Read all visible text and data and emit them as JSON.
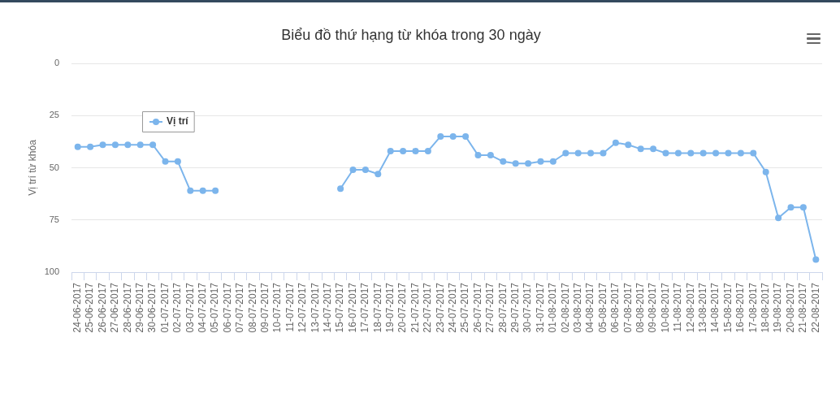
{
  "chart_data": {
    "type": "line",
    "title": "Biểu đồ thứ hạng từ khóa trong 30 ngày",
    "ylabel": "Vị trí từ khóa",
    "categories": [
      "24-06-2017",
      "25-06-2017",
      "26-06-2017",
      "27-06-2017",
      "28-06-2017",
      "29-06-2017",
      "30-06-2017",
      "01-07-2017",
      "02-07-2017",
      "03-07-2017",
      "04-07-2017",
      "05-07-2017",
      "06-07-2017",
      "07-07-2017",
      "08-07-2017",
      "09-07-2017",
      "10-07-2017",
      "11-07-2017",
      "12-07-2017",
      "13-07-2017",
      "14-07-2017",
      "15-07-2017",
      "16-07-2017",
      "17-07-2017",
      "18-07-2017",
      "19-07-2017",
      "20-07-2017",
      "21-07-2017",
      "22-07-2017",
      "23-07-2017",
      "24-07-2017",
      "25-07-2017",
      "26-07-2017",
      "27-07-2017",
      "28-07-2017",
      "29-07-2017",
      "30-07-2017",
      "31-07-2017",
      "01-08-2017",
      "02-08-2017",
      "03-08-2017",
      "04-08-2017",
      "05-08-2017",
      "06-08-2017",
      "07-08-2017",
      "08-08-2017",
      "09-08-2017",
      "10-08-2017",
      "11-08-2017",
      "12-08-2017",
      "13-08-2017",
      "14-08-2017",
      "15-08-2017",
      "16-08-2017",
      "17-08-2017",
      "18-08-2017",
      "19-08-2017",
      "20-08-2017",
      "21-08-2017",
      "22-08-2017"
    ],
    "series": [
      {
        "name": "Vị trí",
        "color": "#7cb5ec",
        "values": [
          40,
          40,
          39,
          39,
          39,
          39,
          39,
          47,
          47,
          61,
          61,
          61,
          null,
          null,
          null,
          null,
          null,
          null,
          null,
          null,
          null,
          60,
          51,
          51,
          53,
          42,
          42,
          42,
          42,
          35,
          35,
          35,
          44,
          44,
          47,
          48,
          48,
          47,
          47,
          43,
          43,
          43,
          43,
          38,
          39,
          41,
          41,
          43,
          43,
          43,
          43,
          43,
          43,
          43,
          43,
          52,
          74,
          69,
          69,
          94
        ]
      }
    ],
    "ylim": [
      100,
      0
    ],
    "yticks": [
      0,
      25,
      50,
      75,
      100
    ],
    "grid": "y",
    "legend": "top left",
    "marker": "circle",
    "line_style": "solid"
  }
}
